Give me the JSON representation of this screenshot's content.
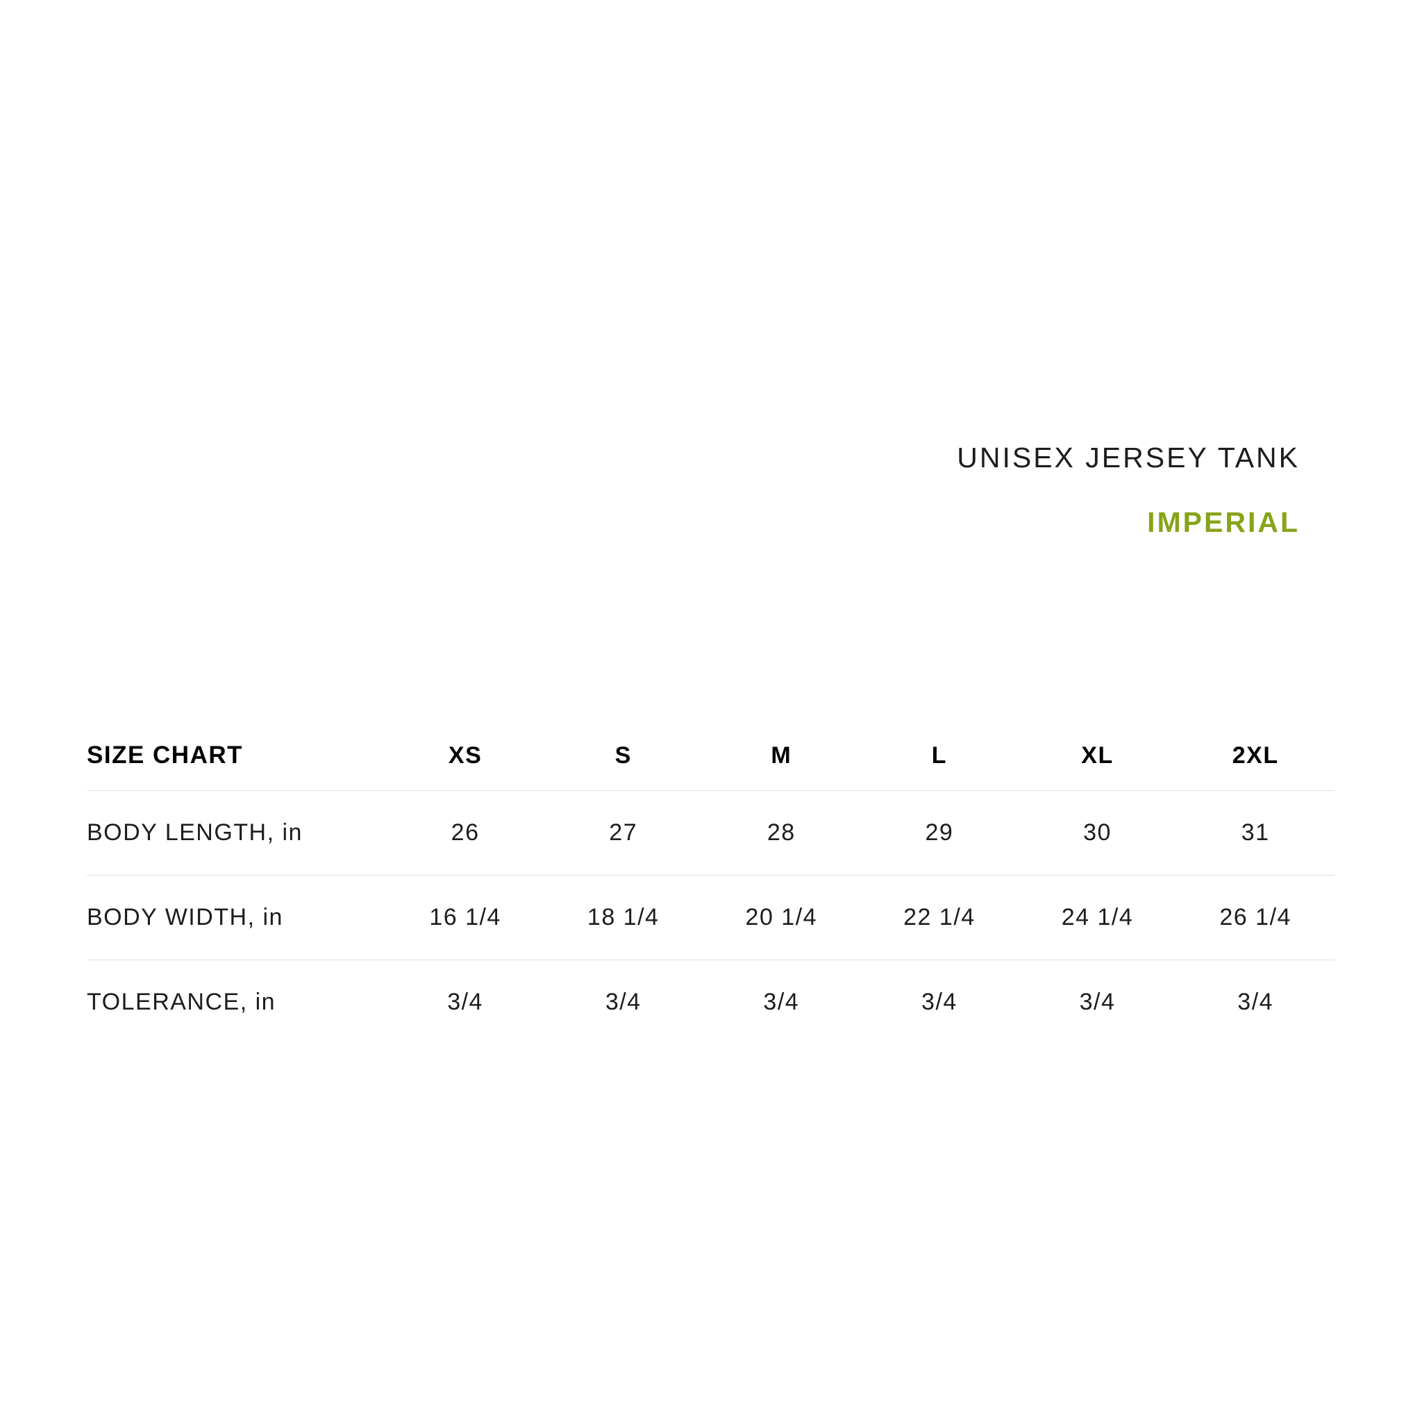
{
  "title": {
    "product": "UNISEX JERSEY TANK",
    "units": "IMPERIAL"
  },
  "colors": {
    "accent_green": "#87a41a",
    "text": "#1d1d1d",
    "divider": "#e0e0e0",
    "background": "#ffffff"
  },
  "chart_data": {
    "type": "table",
    "title": "SIZE CHART",
    "columns": [
      "XS",
      "S",
      "M",
      "L",
      "XL",
      "2XL"
    ],
    "rows": [
      {
        "label": "BODY LENGTH, in",
        "values": [
          "26",
          "27",
          "28",
          "29",
          "30",
          "31"
        ]
      },
      {
        "label": "BODY WIDTH, in",
        "values": [
          "16 1/4",
          "18 1/4",
          "20 1/4",
          "22 1/4",
          "24 1/4",
          "26 1/4"
        ]
      },
      {
        "label": "TOLERANCE, in",
        "values": [
          "3/4",
          "3/4",
          "3/4",
          "3/4",
          "3/4",
          "3/4"
        ]
      }
    ],
    "layout": {
      "grid": "horizontal-dividers-only",
      "header_position": "top-row",
      "title_position": "top-right-of-page"
    }
  }
}
